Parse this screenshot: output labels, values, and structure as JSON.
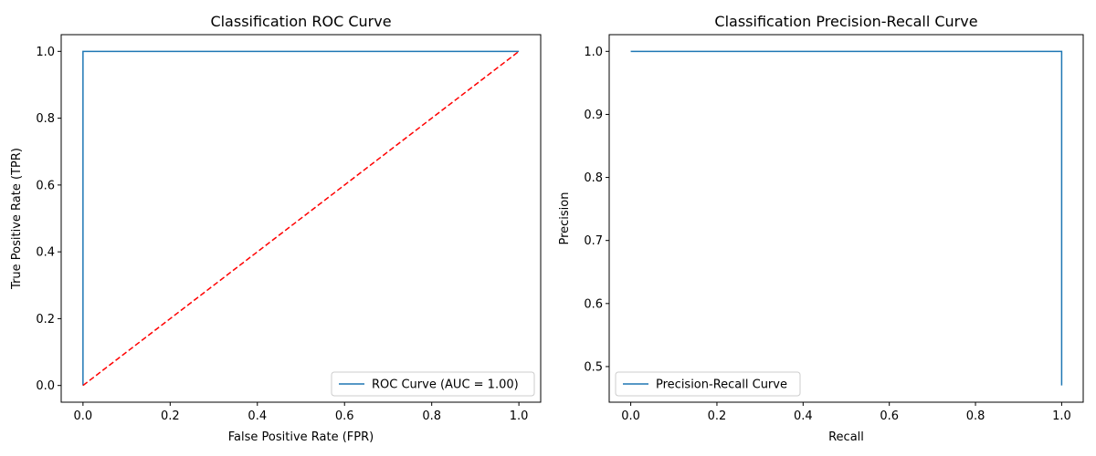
{
  "chart_data": [
    {
      "type": "line",
      "title": "Classification ROC Curve",
      "xlabel": "False Positive Rate (FPR)",
      "ylabel": "True Positive Rate (TPR)",
      "xlim": [
        -0.05,
        1.05
      ],
      "ylim": [
        -0.05,
        1.05
      ],
      "xticks": [
        0.0,
        0.2,
        0.4,
        0.6,
        0.8,
        1.0
      ],
      "yticks": [
        0.0,
        0.2,
        0.4,
        0.6,
        0.8,
        1.0
      ],
      "xtick_labels": [
        "0.0",
        "0.2",
        "0.4",
        "0.6",
        "0.8",
        "1.0"
      ],
      "ytick_labels": [
        "0.0",
        "0.2",
        "0.4",
        "0.6",
        "0.8",
        "1.0"
      ],
      "grid": false,
      "legend_position": "bottom-right",
      "series": [
        {
          "name": "ROC Curve (AUC = 1.00)",
          "color": "#1f77b4",
          "dash": "solid",
          "in_legend": true,
          "x": [
            0.0,
            0.0,
            1.0
          ],
          "y": [
            0.0,
            1.0,
            1.0
          ]
        },
        {
          "color": "#ff0000",
          "dash": "dashed",
          "in_legend": false,
          "x": [
            0.0,
            1.0
          ],
          "y": [
            0.0,
            1.0
          ]
        }
      ]
    },
    {
      "type": "line",
      "title": "Classification Precision-Recall Curve",
      "xlabel": "Recall",
      "ylabel": "Precision",
      "xlim": [
        -0.05,
        1.05
      ],
      "ylim": [
        0.4435,
        1.0265
      ],
      "xticks": [
        0.0,
        0.2,
        0.4,
        0.6,
        0.8,
        1.0
      ],
      "yticks": [
        0.5,
        0.6,
        0.7,
        0.8,
        0.9,
        1.0
      ],
      "xtick_labels": [
        "0.0",
        "0.2",
        "0.4",
        "0.6",
        "0.8",
        "1.0"
      ],
      "ytick_labels": [
        "0.5",
        "0.6",
        "0.7",
        "0.8",
        "0.9",
        "1.0"
      ],
      "grid": false,
      "legend_position": "bottom-left",
      "series": [
        {
          "name": "Precision-Recall Curve",
          "color": "#1f77b4",
          "dash": "solid",
          "in_legend": true,
          "x": [
            0.0,
            1.0,
            1.0
          ],
          "y": [
            1.0,
            1.0,
            0.47
          ]
        }
      ]
    }
  ]
}
